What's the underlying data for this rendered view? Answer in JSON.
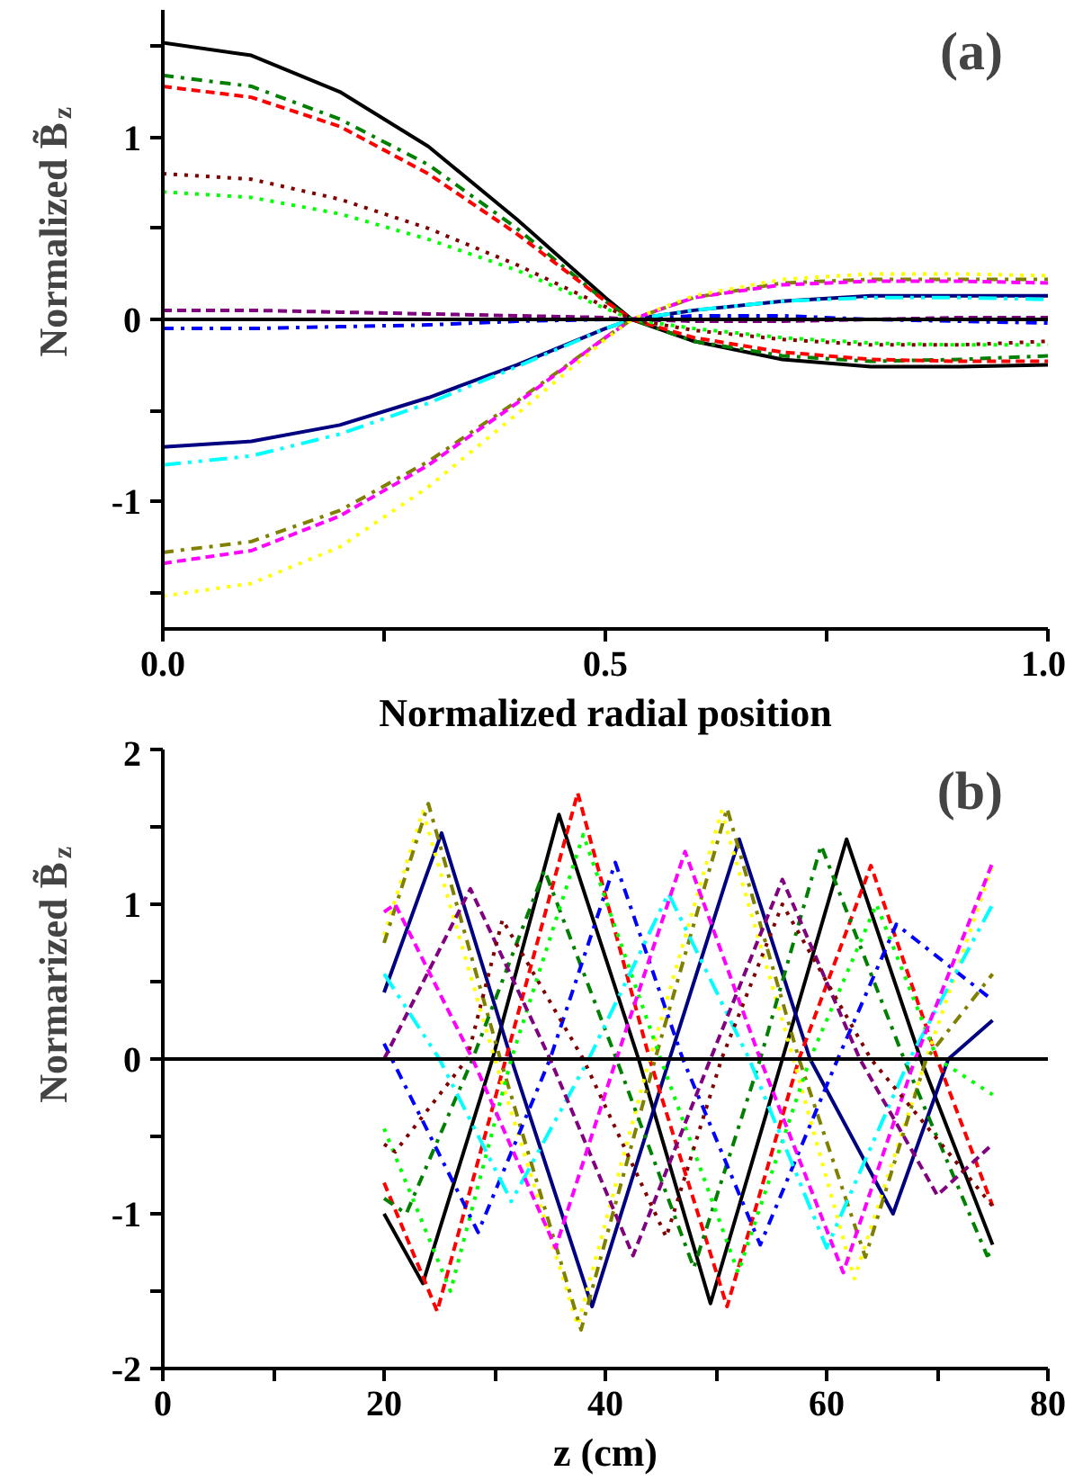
{
  "chart_data": [
    {
      "type": "line",
      "ylabel": "Normalized B̃$_{z}$",
      "xlabel": "Normalized radial position",
      "annotations": [
        "(a)"
      ],
      "x": [
        0,
        0.1,
        0.2,
        0.3,
        0.4,
        0.5,
        0.53,
        0.6,
        0.7,
        0.8,
        0.9,
        1.0
      ],
      "xlim": [
        0,
        1
      ],
      "ylim": [
        -1.7,
        1.7
      ],
      "xticks": [
        {
          "value": 0,
          "label": "0.0"
        },
        {
          "value": 0.25,
          "label": null
        },
        {
          "value": 0.5,
          "label": "0.5"
        },
        {
          "value": 0.75,
          "label": null
        },
        {
          "value": 1,
          "label": "1.0"
        }
      ],
      "yticks": [
        {
          "value": -1.5,
          "label": null
        },
        -1,
        {
          "value": -0.5,
          "label": null
        },
        0,
        {
          "value": 0.5,
          "label": null
        },
        1,
        {
          "value": 1.5,
          "label": null
        }
      ],
      "ref_lines": [
        {
          "axis": "y",
          "value": 0,
          "color": "#000000",
          "line_style": "solid"
        }
      ],
      "grid": false,
      "series": [
        {
          "color": "#000000",
          "line_style": "solid",
          "values": [
            1.52,
            1.45,
            1.25,
            0.95,
            0.55,
            0.12,
            0,
            -0.12,
            -0.22,
            -0.26,
            -0.26,
            -0.25
          ]
        },
        {
          "color": "#008000",
          "line_style": "dashdot",
          "values": [
            1.34,
            1.28,
            1.1,
            0.85,
            0.5,
            0.1,
            0,
            -0.12,
            -0.2,
            -0.23,
            -0.22,
            -0.2
          ]
        },
        {
          "color": "#ff0000",
          "line_style": "dashed",
          "values": [
            1.28,
            1.22,
            1.06,
            0.8,
            0.47,
            0.1,
            0,
            -0.1,
            -0.18,
            -0.22,
            -0.23,
            -0.23
          ]
        },
        {
          "color": "#800000",
          "line_style": "dotted",
          "values": [
            0.8,
            0.77,
            0.66,
            0.5,
            0.3,
            0.07,
            0,
            -0.06,
            -0.11,
            -0.14,
            -0.14,
            -0.12
          ]
        },
        {
          "color": "#00ff00",
          "line_style": "dotted",
          "values": [
            0.7,
            0.67,
            0.58,
            0.44,
            0.27,
            0.06,
            0,
            -0.05,
            -0.1,
            -0.13,
            -0.14,
            -0.14
          ]
        },
        {
          "color": "#800080",
          "line_style": "dashed",
          "values": [
            0.05,
            0.05,
            0.04,
            0.03,
            0.02,
            0.01,
            0,
            -0.01,
            -0.01,
            0,
            0.01,
            0.01
          ]
        },
        {
          "color": "#0000ff",
          "line_style": "dashdot",
          "values": [
            -0.05,
            -0.05,
            -0.04,
            -0.03,
            -0.01,
            0,
            0,
            0.02,
            0.02,
            0,
            -0.01,
            -0.02
          ]
        },
        {
          "color": "#000080",
          "line_style": "solid",
          "values": [
            -0.7,
            -0.67,
            -0.58,
            -0.43,
            -0.25,
            -0.05,
            0,
            0.05,
            0.1,
            0.13,
            0.13,
            0.13
          ]
        },
        {
          "color": "#00ffff",
          "line_style": "dashdotdot",
          "values": [
            -0.8,
            -0.75,
            -0.63,
            -0.46,
            -0.26,
            -0.05,
            0,
            0.05,
            0.1,
            0.12,
            0.12,
            0.11
          ]
        },
        {
          "color": "#808000",
          "line_style": "dashdot",
          "values": [
            -1.28,
            -1.22,
            -1.05,
            -0.78,
            -0.45,
            -0.1,
            0,
            0.12,
            0.2,
            0.22,
            0.22,
            0.22
          ]
        },
        {
          "color": "#ff00ff",
          "line_style": "dashed",
          "values": [
            -1.34,
            -1.27,
            -1.08,
            -0.8,
            -0.46,
            -0.1,
            0,
            0.12,
            0.19,
            0.21,
            0.21,
            0.2
          ]
        },
        {
          "color": "#ffff00",
          "line_style": "dotted",
          "values": [
            -1.52,
            -1.45,
            -1.25,
            -0.92,
            -0.52,
            -0.11,
            0,
            0.13,
            0.22,
            0.25,
            0.25,
            0.24
          ]
        }
      ]
    },
    {
      "type": "line",
      "ylabel": "Normarized B̃$_{z}$",
      "xlabel": "z (cm)",
      "annotations": [
        "(b)"
      ],
      "xlim": [
        0,
        80
      ],
      "ylim": [
        -2,
        2
      ],
      "xticks": [
        0,
        {
          "value": 10,
          "label": null
        },
        20,
        {
          "value": 30,
          "label": null
        },
        40,
        {
          "value": 50,
          "label": null
        },
        60,
        {
          "value": 70,
          "label": null
        },
        80
      ],
      "yticks": [
        -2,
        {
          "value": -1.5,
          "label": null
        },
        -1,
        {
          "value": -0.5,
          "label": null
        },
        0,
        {
          "value": 0.5,
          "label": null
        },
        1,
        {
          "value": 1.5,
          "label": null
        },
        2
      ],
      "ref_lines": [
        {
          "axis": "y",
          "value": 0,
          "color": "#000000",
          "line_style": "solid"
        }
      ],
      "grid": false,
      "series": [
        {
          "color": "#000000",
          "line_style": "solid",
          "x": [
            20,
            23.5,
            29.8,
            35.8,
            43,
            49.5,
            56,
            61.8,
            68.5,
            75
          ],
          "values": [
            -1.0,
            -1.45,
            0,
            1.58,
            0,
            -1.58,
            0,
            1.42,
            0,
            -1.2
          ]
        },
        {
          "color": "#000080",
          "line_style": "solid",
          "x": [
            20,
            25.2,
            31.5,
            38.8,
            45.8,
            52.1,
            58.5,
            66,
            71,
            75
          ],
          "values": [
            0.43,
            1.46,
            0,
            -1.6,
            0,
            1.42,
            0,
            -1.0,
            0,
            0.25
          ]
        },
        {
          "color": "#ff0000",
          "line_style": "dashed",
          "x": [
            20,
            24.8,
            31,
            37.5,
            44,
            51,
            57.5,
            64,
            70,
            75
          ],
          "values": [
            -0.8,
            -1.63,
            0,
            1.72,
            0,
            -1.6,
            0,
            1.25,
            0,
            -0.95
          ]
        },
        {
          "color": "#ffff00",
          "line_style": "dotted",
          "x": [
            20,
            23.5,
            30,
            37.5,
            44,
            50.5,
            57,
            62.5,
            69,
            75
          ],
          "values": [
            0.8,
            1.6,
            0,
            -1.72,
            0,
            1.6,
            0,
            -1.42,
            0,
            1.25
          ]
        },
        {
          "color": "#808000",
          "line_style": "dashdot",
          "x": [
            20,
            24,
            30.5,
            37.8,
            44.5,
            51,
            57.5,
            63.5,
            69,
            75
          ],
          "values": [
            0.75,
            1.65,
            0,
            -1.75,
            0,
            1.62,
            0,
            -1.28,
            0,
            0.55
          ]
        },
        {
          "color": "#008000",
          "line_style": "dashdot",
          "x": [
            20,
            22,
            28,
            34.5,
            41,
            48,
            54,
            59.5,
            67,
            74.5,
            75
          ],
          "values": [
            -0.9,
            -1.0,
            0,
            1.22,
            0,
            -1.35,
            0,
            1.38,
            0,
            -1.27,
            -1.25
          ]
        },
        {
          "color": "#00ff00",
          "line_style": "dotted",
          "x": [
            20,
            26,
            31.5,
            38,
            45,
            52,
            58.5,
            64.5,
            70,
            75
          ],
          "values": [
            -0.45,
            -1.5,
            0,
            1.45,
            0,
            -1.38,
            0,
            1.0,
            0,
            -0.23
          ]
        },
        {
          "color": "#0000ff",
          "line_style": "dashdot",
          "x": [
            20,
            28.5,
            35,
            40.9,
            47,
            54,
            61,
            66.3,
            75
          ],
          "values": [
            0.1,
            -1.12,
            0,
            1.27,
            0,
            -1.2,
            0,
            0.87,
            0.38
          ]
        },
        {
          "color": "#00ffff",
          "line_style": "dashdotdot",
          "x": [
            20,
            25,
            31.5,
            38.5,
            45.7,
            53,
            60,
            67.5,
            75
          ],
          "values": [
            0.55,
            0,
            -0.92,
            0,
            1.07,
            0,
            -1.22,
            0,
            1.0
          ]
        },
        {
          "color": "#800080",
          "line_style": "dashed",
          "x": [
            20,
            27.8,
            35,
            42.5,
            49.5,
            56,
            63,
            70,
            75
          ],
          "values": [
            0,
            1.1,
            0,
            -1.27,
            0,
            1.16,
            0,
            -0.88,
            -0.55
          ]
        },
        {
          "color": "#ff00ff",
          "line_style": "dashed",
          "x": [
            20,
            21,
            28,
            35.5,
            41,
            47.2,
            54,
            61.5,
            68,
            75
          ],
          "values": [
            0.95,
            1.0,
            0,
            -1.22,
            0,
            1.34,
            0,
            -1.38,
            0,
            1.27
          ]
        },
        {
          "color": "#800000",
          "line_style": "dotted",
          "x": [
            20,
            21,
            27.5,
            30.7,
            38,
            45.5,
            50.5,
            56,
            64,
            75
          ],
          "values": [
            -0.55,
            -0.6,
            0,
            0.9,
            0,
            -1.15,
            0,
            1.0,
            0,
            -0.95
          ]
        }
      ]
    }
  ]
}
